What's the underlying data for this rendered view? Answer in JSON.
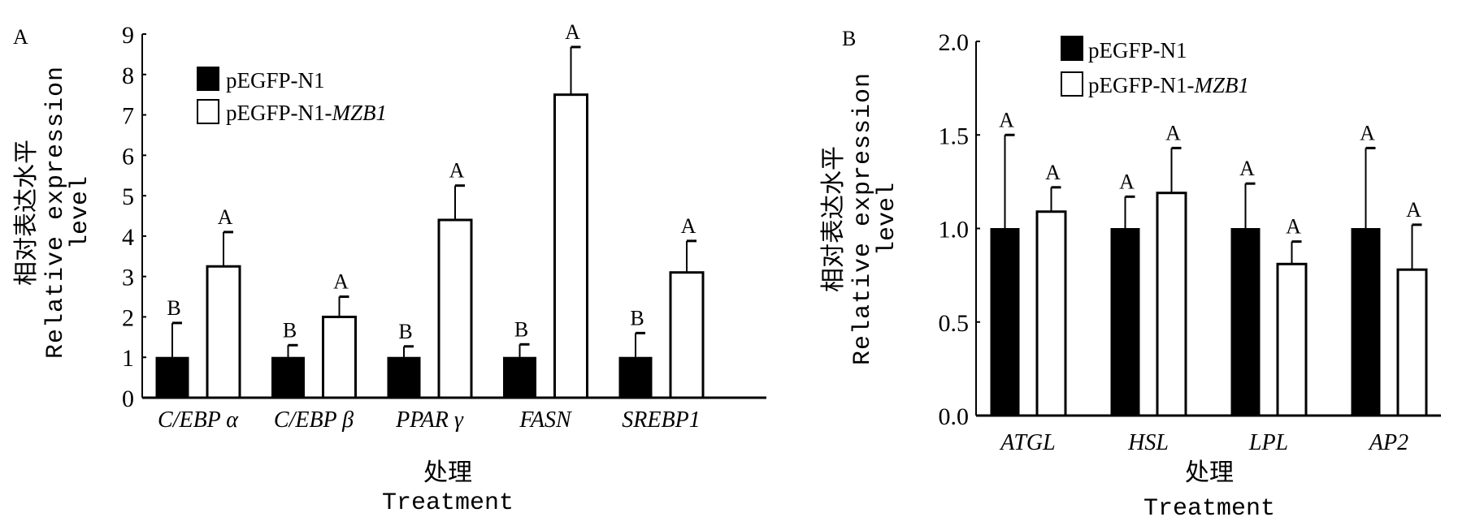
{
  "chart_data": [
    {
      "type": "bar",
      "panel_label": "A",
      "ylabel_cn": "相对表达水平",
      "ylabel_en_1": "Relative expression",
      "ylabel_en_2": "level",
      "xlabel_cn": "处理",
      "xlabel_en": "Treatment",
      "ylim": [
        0,
        9
      ],
      "yticks": [
        "0",
        "1",
        "2",
        "3",
        "4",
        "5",
        "6",
        "7",
        "8",
        "9"
      ],
      "categories": [
        "C/EBP α",
        "C/EBP β",
        "PPAR  γ",
        "FASN",
        "SREBP1"
      ],
      "legend": {
        "placement": "top-left",
        "entries": [
          "pEGFP-N1",
          "pEGFP-N1-",
          "MZB1"
        ]
      },
      "series": [
        {
          "name": "pEGFP-N1",
          "fill": "#000000",
          "values": [
            1,
            1,
            1,
            1,
            1
          ],
          "error_upper": [
            1.85,
            1.3,
            1.27,
            1.32,
            1.6
          ],
          "letters": [
            "B",
            "B",
            "B",
            "B",
            "B"
          ]
        },
        {
          "name": "pEGFP-N1-MZB1",
          "fill": "#ffffff",
          "values": [
            3.25,
            2.0,
            4.4,
            7.5,
            3.1
          ],
          "error_upper": [
            4.1,
            2.5,
            5.25,
            8.68,
            3.88
          ],
          "letters": [
            "A",
            "A",
            "A",
            "A",
            "A"
          ]
        }
      ]
    },
    {
      "type": "bar",
      "panel_label": "B",
      "ylabel_cn": "相对表达水平",
      "ylabel_en_1": "Relative expression",
      "ylabel_en_2": "level",
      "xlabel_cn": "处理",
      "xlabel_en": "Treatment",
      "ylim": [
        0,
        2.0
      ],
      "yticks": [
        "0.0",
        "0.5",
        "1.0",
        "1.5",
        "2.0"
      ],
      "categories": [
        "ATGL",
        "HSL",
        "LPL",
        "AP2"
      ],
      "legend": {
        "placement": "top",
        "entries": [
          "pEGFP-N1",
          "pEGFP-N1-",
          "MZB1"
        ]
      },
      "series": [
        {
          "name": "pEGFP-N1",
          "fill": "#000000",
          "values": [
            1,
            1,
            1,
            1
          ],
          "error_upper": [
            1.5,
            1.17,
            1.24,
            1.43
          ],
          "letters": [
            "A",
            "A",
            "A",
            "A"
          ]
        },
        {
          "name": "pEGFP-N1-MZB1",
          "fill": "#ffffff",
          "values": [
            1.09,
            1.19,
            0.81,
            0.78
          ],
          "error_upper": [
            1.22,
            1.43,
            0.93,
            1.02
          ],
          "letters": [
            "A",
            "A",
            "A",
            "A"
          ]
        }
      ]
    }
  ]
}
